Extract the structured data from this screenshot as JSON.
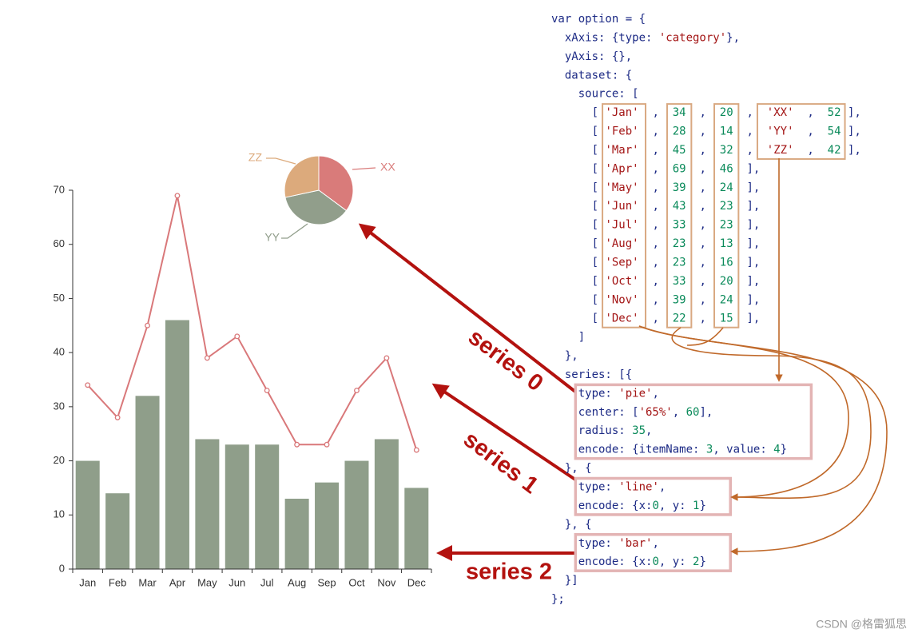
{
  "chart_data": [
    {
      "type": "pie",
      "categories": [
        "XX",
        "YY",
        "ZZ"
      ],
      "values": [
        52,
        54,
        42
      ],
      "colors": [
        "#d97b7a",
        "#919e8b",
        "#dcaa7c"
      ]
    },
    {
      "type": "combo",
      "categories": [
        "Jan",
        "Feb",
        "Mar",
        "Apr",
        "May",
        "Jun",
        "Jul",
        "Aug",
        "Sep",
        "Oct",
        "Nov",
        "Dec"
      ],
      "series": [
        {
          "type": "line",
          "color": "#d9787a",
          "values": [
            34,
            28,
            45,
            69,
            39,
            43,
            33,
            23,
            23,
            33,
            39,
            22
          ]
        },
        {
          "type": "bar",
          "color": "#8f9e8a",
          "values": [
            20,
            14,
            32,
            46,
            24,
            23,
            23,
            13,
            16,
            20,
            24,
            15
          ]
        }
      ],
      "ylim": [
        0,
        70
      ],
      "yticks": [
        0,
        10,
        20,
        30,
        40,
        50,
        60,
        70
      ]
    }
  ],
  "code": {
    "lines": [
      "var option = {",
      "  xAxis: {type: 'category'},",
      "  yAxis: {},",
      "  dataset: {",
      "    source: [",
      "      [ 'Jan'  ,  34  ,  20  ,  'XX'  ,  52 ],",
      "      [ 'Feb'  ,  28  ,  14  ,  'YY'  ,  54 ],",
      "      [ 'Mar'  ,  45  ,  32  ,  'ZZ'  ,  42 ],",
      "      [ 'Apr'  ,  69  ,  46  ],",
      "      [ 'May'  ,  39  ,  24  ],",
      "      [ 'Jun'  ,  43  ,  23  ],",
      "      [ 'Jul'  ,  33  ,  23  ],",
      "      [ 'Aug'  ,  23  ,  13  ],",
      "      [ 'Sep'  ,  23  ,  16  ],",
      "      [ 'Oct'  ,  33  ,  20  ],",
      "      [ 'Nov'  ,  39  ,  24  ],",
      "      [ 'Dec'  ,  22  ,  15  ],",
      "    ]",
      "  },",
      "  series: [{",
      "    type: 'pie',",
      "    center: ['65%', 60],",
      "    radius: 35,",
      "    encode: {itemName: 3, value: 4}",
      "  }, {",
      "    type: 'line',",
      "    encode: {x:0, y: 1}",
      "  }, {",
      "    type: 'bar',",
      "    encode: {x:0, y: 2}",
      "  }]",
      "};"
    ]
  },
  "annotations": [
    "series 0",
    "series 1",
    "series 2"
  ],
  "watermark": "CSDN @格雷狐思"
}
